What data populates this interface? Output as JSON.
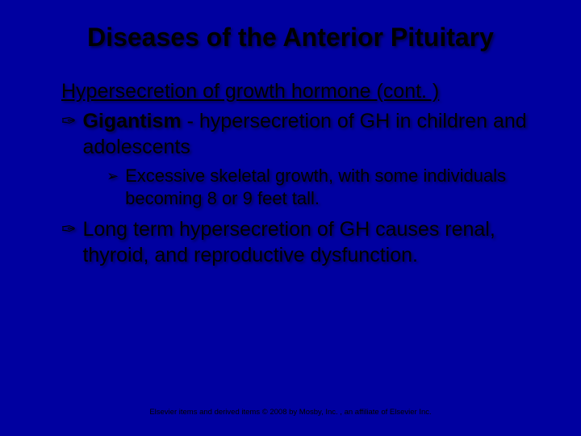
{
  "background_color": "#0000a0",
  "text_color": "#000000",
  "shadow_color": "rgba(0,0,0,0.5)",
  "title": "Diseases of the Anterior Pituitary",
  "title_fontsize": 32,
  "subtitle": "Hypersecretion of growth hormone (cont. )",
  "subtitle_fontsize": 25,
  "bullets": [
    {
      "icon": "✑",
      "bold_lead": "Gigantism",
      "rest": " - hypersecretion of GH in children and adolescents",
      "sub": [
        {
          "icon": "➢",
          "text": "Excessive skeletal growth, with some individuals becoming 8 or 9 feet tall."
        }
      ]
    },
    {
      "icon": "✑",
      "bold_lead": "",
      "rest": "Long term hypersecretion of GH causes renal, thyroid, and reproductive dysfunction.",
      "sub": []
    }
  ],
  "body_fontsize": 25,
  "sub_fontsize": 22,
  "footer": "Elsevier items and derived items © 2008 by Mosby, Inc. , an affiliate of Elsevier Inc.",
  "footer_fontsize": 9.5
}
